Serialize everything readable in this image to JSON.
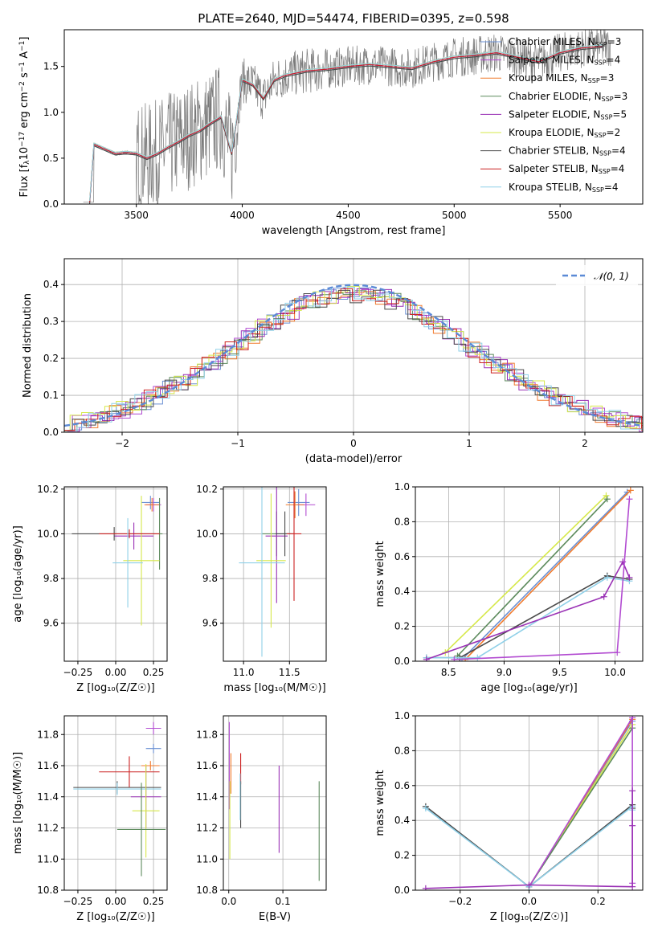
{
  "title": "PLATE=2640, MJD=54474, FIBERID=0395, z=0.598",
  "models": [
    {
      "name": "Chabrier MILES, N",
      "nssp": "3",
      "color": "#6a8fd3"
    },
    {
      "name": "Salpeter MILES, N",
      "nssp": "4",
      "color": "#b24bd1"
    },
    {
      "name": "Kroupa MILES, N",
      "nssp": "3",
      "color": "#f07a2c"
    },
    {
      "name": "Chabrier ELODIE, N",
      "nssp": "3",
      "color": "#5c8a5c"
    },
    {
      "name": "Salpeter ELODIE, N",
      "nssp": "5",
      "color": "#9a31b5"
    },
    {
      "name": "Kroupa ELODIE, N",
      "nssp": "2",
      "color": "#d6e84a"
    },
    {
      "name": "Chabrier STELIB, N",
      "nssp": "4",
      "color": "#4a4a4a"
    },
    {
      "name": "Salpeter STELIB, N",
      "nssp": "4",
      "color": "#cc2222"
    },
    {
      "name": "Kroupa STELIB, N",
      "nssp": "4",
      "color": "#8fd0e8"
    }
  ],
  "ssp_subscript": "SSP",
  "chart_data": [
    {
      "id": "spectrum",
      "type": "line",
      "xlabel": "wavelength [Angstrom, rest frame]",
      "ylabel": "Flux [f",
      "ylabel_sub": "λ",
      "ylabel_rest": "10",
      "ylabel_exp": "−17",
      "ylabel_tail": " erg cm",
      "ylabel_exp2": "−2",
      "ylabel_tail2": " s",
      "ylabel_exp3": "−1",
      "ylabel_tail3": " A",
      "ylabel_exp4": "−1",
      "ylabel_end": "]",
      "xlim": [
        3160,
        5890
      ],
      "ylim": [
        0,
        1.9
      ],
      "xticks": [
        "3500",
        "4000",
        "4500",
        "5000",
        "5500"
      ],
      "xtick_values": [
        3500,
        4000,
        4500,
        5000,
        5500
      ],
      "yticks": [
        "0.0",
        "0.5",
        "1.0",
        "1.5"
      ],
      "ytick_values": [
        0,
        0.5,
        1.0,
        1.5
      ],
      "model_curve": {
        "x": [
          3280,
          3300,
          3320,
          3350,
          3400,
          3450,
          3500,
          3550,
          3600,
          3650,
          3700,
          3750,
          3800,
          3850,
          3900,
          3950,
          4000,
          4050,
          4100,
          4150,
          4200,
          4300,
          4400,
          4500,
          4600,
          4700,
          4800,
          4900,
          5000,
          5100,
          5200,
          5300,
          5400,
          5500,
          5600,
          5700
        ],
        "y": [
          0.02,
          0.65,
          0.63,
          0.6,
          0.55,
          0.56,
          0.55,
          0.5,
          0.55,
          0.62,
          0.68,
          0.75,
          0.8,
          0.88,
          0.95,
          0.55,
          1.35,
          1.3,
          1.15,
          1.35,
          1.4,
          1.45,
          1.47,
          1.5,
          1.52,
          1.5,
          1.48,
          1.55,
          1.6,
          1.62,
          1.65,
          1.6,
          1.55,
          1.65,
          1.7,
          1.72
        ]
      }
    },
    {
      "id": "residuals",
      "type": "bar",
      "xlabel": "(data-model)/error",
      "ylabel": "Normed distribution",
      "xlim": [
        -2.5,
        2.5
      ],
      "ylim": [
        0,
        0.47
      ],
      "xticks": [
        "−2",
        "−1",
        "0",
        "1",
        "2"
      ],
      "xtick_values": [
        -2,
        -1,
        0,
        1,
        2
      ],
      "yticks": [
        "0.0",
        "0.1",
        "0.2",
        "0.3",
        "0.4"
      ],
      "ytick_values": [
        0,
        0.1,
        0.2,
        0.3,
        0.4
      ],
      "legend": "𝒩(0, 1)",
      "reference": "normal(0,1)"
    },
    {
      "id": "age-vs-Z",
      "type": "scatter",
      "xlabel": "Z [log₁₀(Z/Z☉)]",
      "ylabel": "age  [log₁₀(age/yr)]",
      "xlim": [
        -0.34,
        0.34
      ],
      "ylim": [
        9.43,
        10.21
      ],
      "xticks": [
        "−0.25",
        "0.00",
        "0.25"
      ],
      "xtick_values": [
        -0.25,
        0,
        0.25
      ],
      "yticks": [
        "9.6",
        "9.8",
        "10.0",
        "10.2"
      ],
      "ytick_values": [
        9.6,
        9.8,
        10.0,
        10.2
      ],
      "points": [
        {
          "m": 0,
          "x": 0.23,
          "xerr": 0.06,
          "y": 10.14,
          "yerr": 0.03
        },
        {
          "m": 1,
          "x": 0.25,
          "xerr": 0.05,
          "y": 10.13,
          "yerr": 0.03
        },
        {
          "m": 2,
          "x": 0.24,
          "xerr": 0.05,
          "y": 10.13,
          "yerr": 0.03
        },
        {
          "m": 3,
          "x": 0.29,
          "xerr": 0.02,
          "y": 10.0,
          "yerr": 0.16
        },
        {
          "m": 4,
          "x": 0.12,
          "xerr": 0.13,
          "y": 9.99,
          "yerr": 0.06
        },
        {
          "m": 5,
          "x": 0.17,
          "xerr": 0.12,
          "y": 9.88,
          "yerr": 0.29
        },
        {
          "m": 6,
          "x": -0.01,
          "xerr": 0.28,
          "y": 10.0,
          "yerr": 0.03
        },
        {
          "m": 7,
          "x": 0.09,
          "xerr": 0.2,
          "y": 10.0,
          "yerr": 0.02
        },
        {
          "m": 8,
          "x": 0.08,
          "xerr": 0.1,
          "y": 9.87,
          "yerr": 0.2
        }
      ]
    },
    {
      "id": "age-vs-mass",
      "type": "scatter",
      "xlabel": "mass [log₁₀(M/M☉)]",
      "ylabel": "",
      "xlim": [
        10.78,
        11.9
      ],
      "ylim": [
        9.43,
        10.21
      ],
      "xticks": [
        "11.0",
        "11.5"
      ],
      "xtick_values": [
        11.0,
        11.5
      ],
      "yticks": [
        "9.6",
        "9.8",
        "10.0",
        "10.2"
      ],
      "ytick_values": [
        9.6,
        9.8,
        10.0,
        10.2
      ],
      "points": [
        {
          "m": 0,
          "x": 11.6,
          "xerr": 0.12,
          "y": 10.14,
          "yerr": 0.06
        },
        {
          "m": 1,
          "x": 11.68,
          "xerr": 0.1,
          "y": 10.13,
          "yerr": 0.05
        },
        {
          "m": 2,
          "x": 11.56,
          "xerr": 0.1,
          "y": 10.13,
          "yerr": 0.06
        },
        {
          "m": 3,
          "x": 11.36,
          "xerr": 0.16,
          "y": 10.0,
          "yerr": 0.1
        },
        {
          "m": 4,
          "x": 11.36,
          "xerr": 0.12,
          "y": 9.99,
          "yerr": 0.3
        },
        {
          "m": 5,
          "x": 11.3,
          "xerr": 0.16,
          "y": 9.88,
          "yerr": 0.3
        },
        {
          "m": 6,
          "x": 11.45,
          "xerr": 0.1,
          "y": 10.0,
          "yerr": 0.1
        },
        {
          "m": 7,
          "x": 11.55,
          "xerr": 0.08,
          "y": 10.0,
          "yerr": 0.3
        },
        {
          "m": 8,
          "x": 11.2,
          "xerr": 0.25,
          "y": 9.87,
          "yerr": 0.42
        }
      ]
    },
    {
      "id": "weight-vs-age",
      "type": "line",
      "xlabel": "age  [log₁₀(age/yr)]",
      "ylabel": "mass weight",
      "xlim": [
        8.2,
        10.25
      ],
      "ylim": [
        0,
        1
      ],
      "xticks": [
        "8.5",
        "9.0",
        "9.5",
        "10.0"
      ],
      "xtick_values": [
        8.5,
        9.0,
        9.5,
        10.0
      ],
      "yticks": [
        "0.0",
        "0.2",
        "0.4",
        "0.6",
        "0.8",
        "1.0"
      ],
      "ytick_values": [
        0,
        0.2,
        0.4,
        0.6,
        0.8,
        1.0
      ],
      "series": [
        {
          "m": 5,
          "x": [
            8.47,
            9.92
          ],
          "y": [
            0.05,
            0.95
          ]
        },
        {
          "m": 3,
          "x": [
            8.58,
            9.93
          ],
          "y": [
            0.03,
            0.93
          ]
        },
        {
          "m": 0,
          "x": [
            8.62,
            10.11
          ],
          "y": [
            0.01,
            0.97
          ]
        },
        {
          "m": 2,
          "x": [
            8.65,
            10.14
          ],
          "y": [
            0.01,
            0.98
          ]
        },
        {
          "m": 6,
          "x": [
            8.3,
            8.6,
            9.93,
            10.13
          ],
          "y": [
            0.02,
            0.02,
            0.49,
            0.47
          ]
        },
        {
          "m": 8,
          "x": [
            8.3,
            8.76,
            9.93,
            10.13
          ],
          "y": [
            0.02,
            0.02,
            0.48,
            0.46
          ]
        },
        {
          "m": 4,
          "x": [
            8.3,
            9.9,
            10.07,
            10.13
          ],
          "y": [
            0.01,
            0.37,
            0.57,
            0.48
          ]
        },
        {
          "m": 1,
          "x": [
            8.55,
            10.02,
            10.13
          ],
          "y": [
            0.01,
            0.05,
            0.93
          ]
        }
      ]
    },
    {
      "id": "mass-vs-Z",
      "type": "scatter",
      "xlabel": "Z [log₁₀(Z/Z☉)]",
      "ylabel": "mass [log₁₀(M/M☉)]",
      "xlim": [
        -0.34,
        0.34
      ],
      "ylim": [
        10.8,
        11.92
      ],
      "xticks": [
        "−0.25",
        "0.00",
        "0.25"
      ],
      "xtick_values": [
        -0.25,
        0,
        0.25
      ],
      "yticks": [
        "10.8",
        "11.0",
        "11.2",
        "11.4",
        "11.6",
        "11.8"
      ],
      "ytick_values": [
        10.8,
        11.0,
        11.2,
        11.4,
        11.6,
        11.8
      ],
      "points": [
        {
          "m": 1,
          "x": 0.25,
          "xerr": 0.05,
          "y": 11.84,
          "yerr": 0.04
        },
        {
          "m": 0,
          "x": 0.25,
          "xerr": 0.05,
          "y": 11.71,
          "yerr": 0.03
        },
        {
          "m": 2,
          "x": 0.23,
          "xerr": 0.06,
          "y": 11.6,
          "yerr": 0.03
        },
        {
          "m": 7,
          "x": 0.09,
          "xerr": 0.2,
          "y": 11.56,
          "yerr": 0.1
        },
        {
          "m": 6,
          "x": 0.01,
          "xerr": 0.29,
          "y": 11.46,
          "yerr": 0.04
        },
        {
          "m": 8,
          "x": 0.01,
          "xerr": 0.29,
          "y": 11.45,
          "yerr": 0.04
        },
        {
          "m": 4,
          "x": 0.2,
          "xerr": 0.1,
          "y": 11.4,
          "yerr": 0.2
        },
        {
          "m": 5,
          "x": 0.2,
          "xerr": 0.09,
          "y": 11.31,
          "yerr": 0.3
        },
        {
          "m": 3,
          "x": 0.17,
          "xerr": 0.16,
          "y": 11.19,
          "yerr": 0.3
        }
      ]
    },
    {
      "id": "mass-vs-EBV",
      "type": "scatter",
      "xlabel": "E(B-V)",
      "ylabel": "",
      "xlim": [
        -0.01,
        0.18
      ],
      "ylim": [
        10.8,
        11.92
      ],
      "xticks": [
        "0.0",
        "0.1"
      ],
      "xtick_values": [
        0.0,
        0.1
      ],
      "yticks": [
        "10.8",
        "11.0",
        "11.2",
        "11.4",
        "11.6",
        "11.8"
      ],
      "ytick_values": [
        10.8,
        11.0,
        11.2,
        11.4,
        11.6,
        11.8
      ],
      "points": [
        {
          "m": 1,
          "x": 0.001,
          "xerr": 0,
          "y": 11.6,
          "yerr": 0.28
        },
        {
          "m": 2,
          "x": 0.004,
          "xerr": 0,
          "y": 11.55,
          "yerr": 0.13
        },
        {
          "m": 5,
          "x": 0.002,
          "xerr": 0,
          "y": 11.25,
          "yerr": 0.25
        },
        {
          "m": 7,
          "x": 0.022,
          "xerr": 0,
          "y": 11.58,
          "yerr": 0.1
        },
        {
          "m": 6,
          "x": 0.022,
          "xerr": 0,
          "y": 11.35,
          "yerr": 0.15
        },
        {
          "m": 8,
          "x": 0.021,
          "xerr": 0,
          "y": 11.4,
          "yerr": 0.15
        },
        {
          "m": 4,
          "x": 0.093,
          "xerr": 0,
          "y": 11.32,
          "yerr": 0.28
        },
        {
          "m": 3,
          "x": 0.167,
          "xerr": 0,
          "y": 11.18,
          "yerr": 0.32
        }
      ]
    },
    {
      "id": "weight-vs-Z",
      "type": "line",
      "xlabel": "Z [log₁₀(Z/Z☉)]",
      "ylabel": "mass weight",
      "xlim": [
        -0.33,
        0.33
      ],
      "ylim": [
        0,
        1
      ],
      "xticks": [
        "−0.2",
        "0.0",
        "0.2"
      ],
      "xtick_values": [
        -0.2,
        0,
        0.2
      ],
      "yticks": [
        "0.0",
        "0.2",
        "0.4",
        "0.6",
        "0.8",
        "1.0"
      ],
      "ytick_values": [
        0,
        0.2,
        0.4,
        0.6,
        0.8,
        1.0
      ],
      "series": [
        {
          "m": 0,
          "x": [
            0.0,
            0.3
          ],
          "y": [
            0.02,
            0.97
          ]
        },
        {
          "m": 2,
          "x": [
            0.0,
            0.3
          ],
          "y": [
            0.02,
            0.98
          ]
        },
        {
          "m": 5,
          "x": [
            0.0,
            0.3
          ],
          "y": [
            0.02,
            0.95
          ]
        },
        {
          "m": 3,
          "x": [
            0.0,
            0.3
          ],
          "y": [
            0.02,
            0.93
          ]
        },
        {
          "m": 1,
          "x": [
            0.0,
            0.3,
            0.3
          ],
          "y": [
            0.02,
            0.99,
            0.04
          ]
        },
        {
          "m": 6,
          "x": [
            -0.3,
            0.0,
            0.3,
            0.3
          ],
          "y": [
            0.48,
            0.02,
            0.49,
            0.47
          ]
        },
        {
          "m": 8,
          "x": [
            -0.3,
            0.0,
            0.3,
            0.3
          ],
          "y": [
            0.47,
            0.02,
            0.48,
            0.46
          ]
        },
        {
          "m": 4,
          "x": [
            -0.3,
            0.0,
            0.3,
            0.3,
            0.3
          ],
          "y": [
            0.01,
            0.03,
            0.02,
            0.57,
            0.37
          ]
        }
      ]
    }
  ]
}
